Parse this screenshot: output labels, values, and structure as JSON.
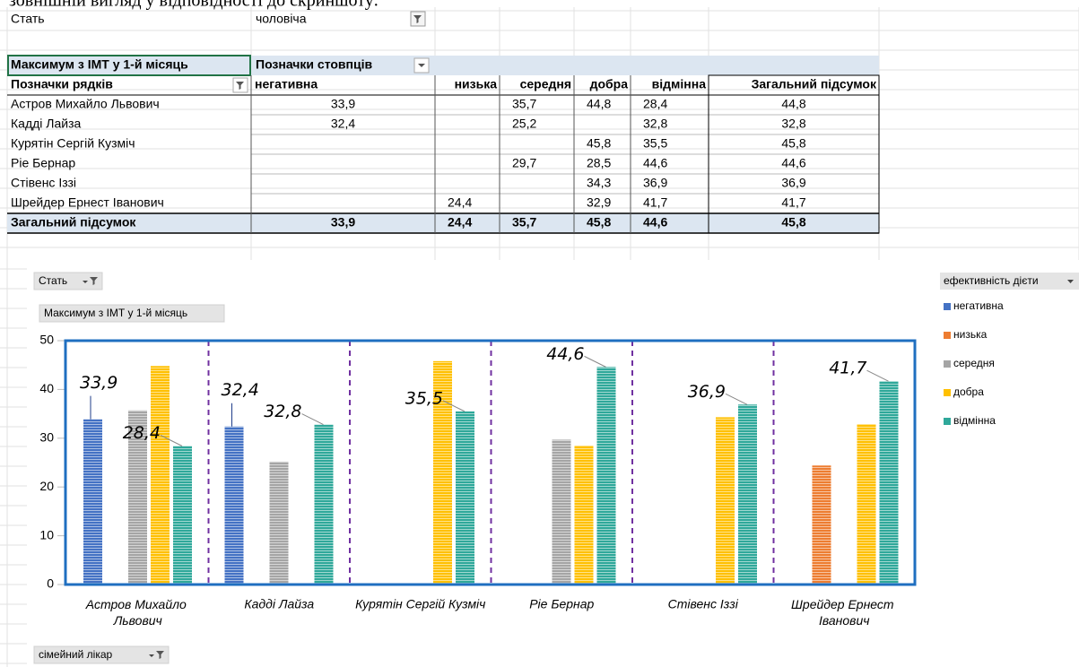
{
  "instruction_text": "зовнішній вигляд у відповідності до скриншоту:",
  "filter": {
    "label": "Стать",
    "value": "чоловіча"
  },
  "pivot": {
    "value_field": "Максимум з ІМТ у 1-й місяць",
    "column_labels": "Позначки стовпців",
    "row_labels": "Позначки рядків",
    "columns": [
      "негативна",
      "низька",
      "середня",
      "добра",
      "відмінна",
      "Загальний підсумок"
    ],
    "rows": [
      {
        "name": "Астров Михайло Львович",
        "cells": [
          "33,9",
          null,
          "35,7",
          "44,8",
          "28,4",
          "44,8"
        ]
      },
      {
        "name": "Кадді Лайза",
        "cells": [
          "32,4",
          null,
          "25,2",
          null,
          "32,8",
          "32,8"
        ]
      },
      {
        "name": "Курятін Сергій Кузміч",
        "cells": [
          null,
          null,
          null,
          "45,8",
          "35,5",
          "45,8"
        ]
      },
      {
        "name": "Ріе Бернар",
        "cells": [
          null,
          null,
          "29,7",
          "28,5",
          "44,6",
          "44,6"
        ]
      },
      {
        "name": "Стівенс Іззі",
        "cells": [
          null,
          null,
          null,
          "34,3",
          "36,9",
          "36,9"
        ]
      },
      {
        "name": "Шрейдер Ернест Іванович",
        "cells": [
          null,
          "24,4",
          null,
          "32,9",
          "41,7",
          "41,7"
        ]
      }
    ],
    "total": {
      "name": "Загальний підсумок",
      "cells": [
        "33,9",
        "24,4",
        "35,7",
        "45,8",
        "44,6",
        "45,8"
      ]
    }
  },
  "chart_data": {
    "type": "bar",
    "filter_button": "Стать",
    "value_button": "Максимум з ІМТ у 1-й місяць",
    "axis_button": "сімейний лікар",
    "legend_title": "ефективність дієти",
    "legend": "right",
    "categories": [
      "Астров Михайло Львович",
      "Кадді Лайза",
      "Курятін Сергій Кузміч",
      "Ріе Бернар",
      "Стівенс Іззі",
      "Шрейдер Ернест Іванович"
    ],
    "series": [
      {
        "name": "негативна",
        "color": "#4472c4",
        "values": [
          33.9,
          32.4,
          null,
          null,
          null,
          null
        ],
        "value_labels": [
          "33,9",
          "32,4",
          null,
          null,
          null,
          null
        ],
        "label_color": "#1f3d8a"
      },
      {
        "name": "низька",
        "color": "#ed7d31",
        "values": [
          null,
          null,
          null,
          null,
          null,
          24.4
        ]
      },
      {
        "name": "середня",
        "color": "#a5a5a5",
        "values": [
          35.7,
          25.2,
          null,
          29.7,
          null,
          null
        ]
      },
      {
        "name": "добра",
        "color": "#ffc000",
        "values": [
          44.8,
          null,
          45.8,
          28.5,
          34.3,
          32.9
        ]
      },
      {
        "name": "відмінна",
        "color": "#2fa89a",
        "values": [
          28.4,
          32.8,
          35.5,
          44.6,
          36.9,
          41.7
        ],
        "value_labels": [
          "28,4",
          "32,8",
          "35,5",
          "44,6",
          "36,9",
          "41,7"
        ],
        "label_color": "#22b14c"
      }
    ],
    "ylim": [
      0,
      50
    ],
    "yticks": [
      0,
      10,
      20,
      30,
      40,
      50
    ]
  }
}
